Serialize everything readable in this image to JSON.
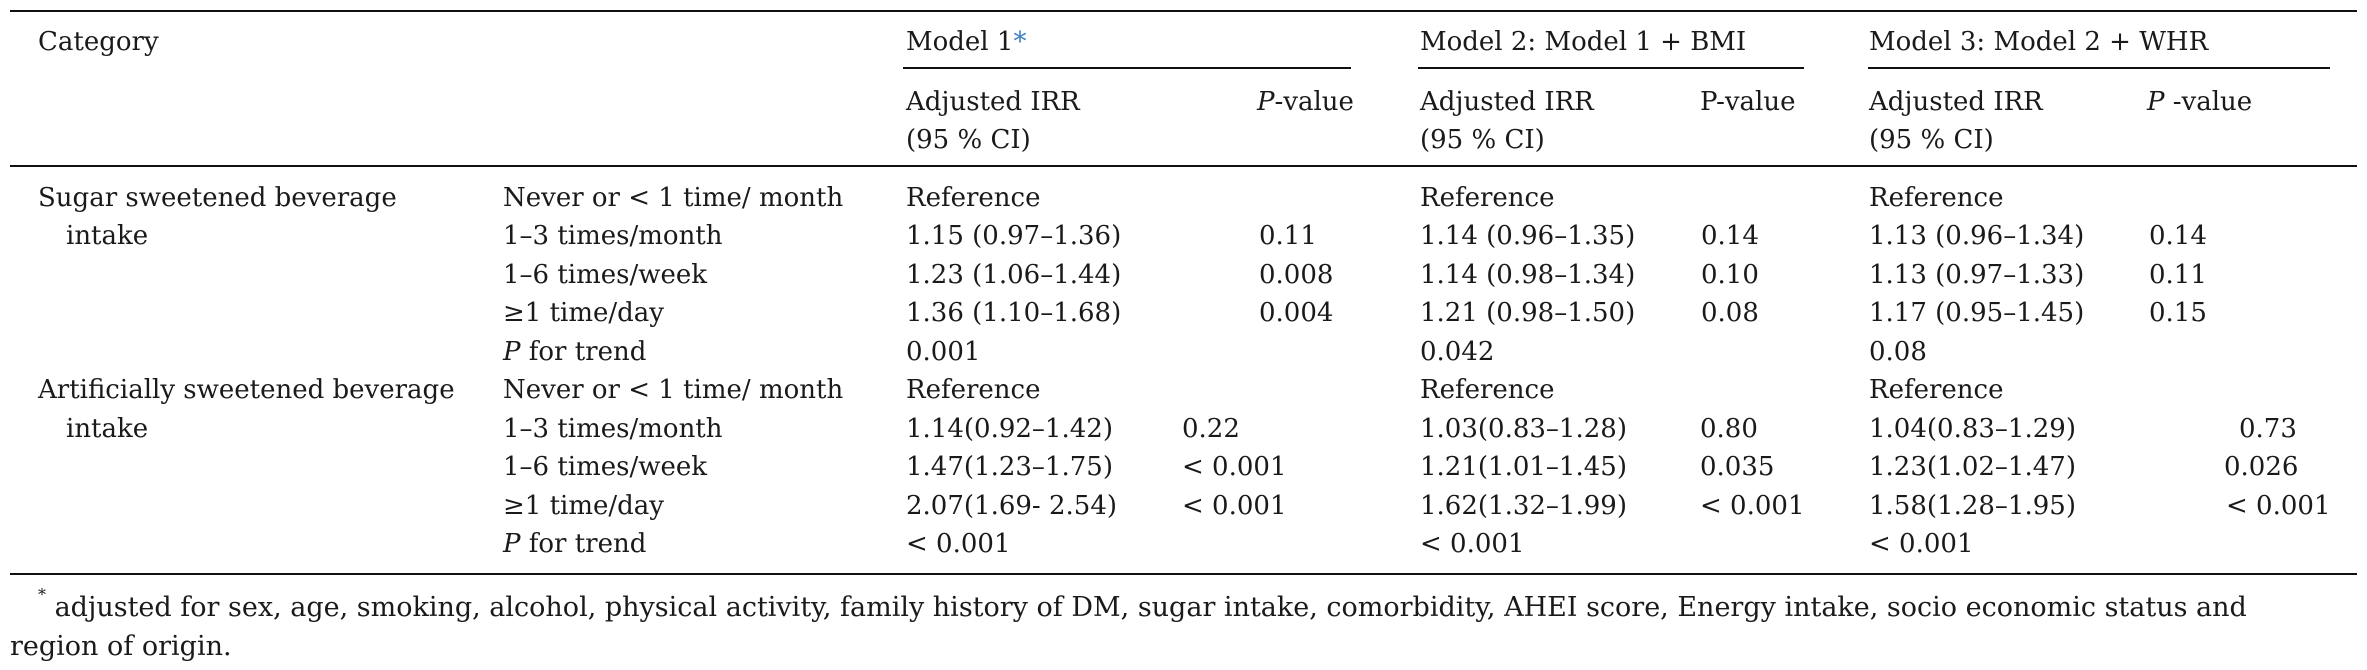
{
  "table": {
    "header": {
      "category": "Category",
      "model1": "Model 1",
      "model1_marker": "*",
      "model2": "Model 2: Model 1 + BMI",
      "model3": "Model 3: Model 2 + WHR",
      "irr_line1": "Adjusted IRR",
      "irr_line2": "(95 % CI)",
      "m1_p_italic": "P",
      "m1_p_rest": "-value",
      "m2_p": "P-value",
      "m3_p_italic": "P",
      "m3_p_rest": " -value"
    },
    "section1": {
      "title_line1": "Sugar sweetened beverage",
      "title_line2": "intake",
      "rows": [
        {
          "level": "Never or < 1 time/ month",
          "m1_irr": "Reference",
          "m1_p": "",
          "m2_irr": "Reference",
          "m2_p": "",
          "m3_irr": "Reference",
          "m3_p": ""
        },
        {
          "level": "1–3 times/month",
          "m1_irr": "1.15 (0.97–1.36)",
          "m1_p": "0.11",
          "m2_irr": "1.14 (0.96–1.35)",
          "m2_p": "0.14",
          "m3_irr": "1.13 (0.96–1.34)",
          "m3_p": "0.14"
        },
        {
          "level": "1–6 times/week",
          "m1_irr": "1.23 (1.06–1.44)",
          "m1_p": "0.008",
          "m2_irr": "1.14 (0.98–1.34)",
          "m2_p": "0.10",
          "m3_irr": "1.13 (0.97–1.33)",
          "m3_p": "0.11"
        },
        {
          "level": "≥1 time/day",
          "m1_irr": "1.36 (1.10–1.68)",
          "m1_p": "0.004",
          "m2_irr": "1.21 (0.98–1.50)",
          "m2_p": "0.08",
          "m3_irr": "1.17 (0.95–1.45)",
          "m3_p": "0.15"
        }
      ],
      "trend_label_italic": "P",
      "trend_label_rest": " for trend",
      "trend_m1": "0.001",
      "trend_m2": "0.042",
      "trend_m3": "0.08"
    },
    "section2": {
      "title_line1": "Artificially sweetened beverage",
      "title_line2": "intake",
      "rows": [
        {
          "level": "Never or < 1 time/ month",
          "m1_irr": "Reference",
          "m1_p": "",
          "m2_irr": "Reference",
          "m2_p": "",
          "m3_irr": "Reference",
          "m3_p": ""
        },
        {
          "level": "1–3 times/month",
          "m1_irr": "1.14(0.92–1.42)",
          "m1_p": "0.22",
          "m2_irr": "1.03(0.83–1.28)",
          "m2_p": "0.80",
          "m3_irr": "1.04(0.83–1.29)",
          "m3_p": "0.73"
        },
        {
          "level": "1–6 times/week",
          "m1_irr": "1.47(1.23–1.75)",
          "m1_p": "< 0.001",
          "m2_irr": "1.21(1.01–1.45)",
          "m2_p": "0.035",
          "m3_irr": "1.23(1.02–1.47)",
          "m3_p": "0.026"
        },
        {
          "level": "≥1 time/day",
          "m1_irr": "2.07(1.69- 2.54)",
          "m1_p": "< 0.001",
          "m2_irr": "1.62(1.32–1.99)",
          "m2_p": "< 0.001",
          "m3_irr": "1.58(1.28–1.95)",
          "m3_p": "< 0.001"
        }
      ],
      "trend_label_italic": "P",
      "trend_label_rest": " for trend",
      "trend_m1": "< 0.001",
      "trend_m2": "< 0.001",
      "trend_m3": "< 0.001"
    }
  },
  "footnote": {
    "marker": "*",
    "line1": " adjusted for sex, age, smoking, alcohol, physical activity, family history of DM, sugar intake, comorbidity, AHEI score, Energy intake, socio economic status and",
    "line2": "region of origin."
  }
}
